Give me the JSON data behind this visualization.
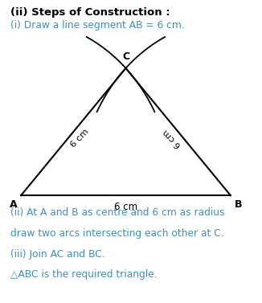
{
  "title1": "(ii) Steps of Construction :",
  "title2": "(i) Draw a line segment AB = 6 cm.",
  "label_A": "A",
  "label_B": "B",
  "label_C": "C",
  "label_AB": "6 cm",
  "label_AC": "6 cm",
  "label_BC": "6 cm",
  "text_color_title": "#000000",
  "text_color_body": "#3c8fbf",
  "line_color": "#000000",
  "bg_color": "#ffffff",
  "body_lines": [
    "(ii) At A and B as centre and 6 cm as radius",
    "draw two arcs intersecting each other at C.",
    "(iii) Join AC and BC.",
    "△ABC is the required triangle."
  ],
  "tri_A": [
    0.08,
    0.355
  ],
  "tri_B": [
    0.88,
    0.355
  ],
  "tri_C": [
    0.48,
    0.775
  ]
}
